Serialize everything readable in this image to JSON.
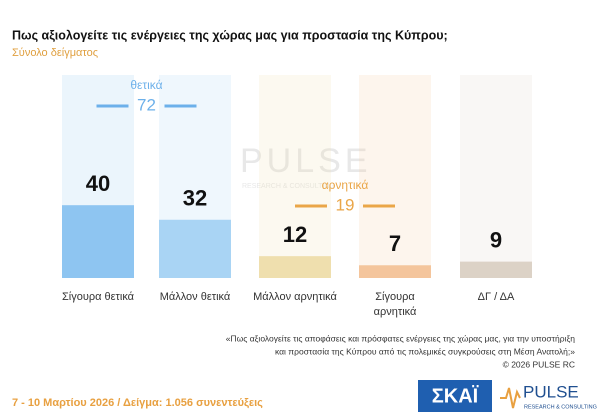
{
  "chart_data": {
    "type": "bar",
    "title": "Πως αξιολογείτε τις ενέργειες της χώρας μας για προστασία της Κύπρου;",
    "subtitle": "Σύνολο δείγματος",
    "categories": [
      "Σίγουρα θετικά",
      "Μάλλον θετικά",
      "Μάλλον αρνητικά",
      "Σίγουρα αρνητικά",
      "ΔΓ / ΔΑ"
    ],
    "values": [
      40,
      32,
      12,
      7,
      9
    ],
    "colors": [
      "#8ec5f1",
      "#a9d4f4",
      "#efdfae",
      "#f4c59c",
      "#dcd2c6"
    ],
    "groups": [
      {
        "label": "θετικά",
        "value": 72,
        "color": "#6cb0ea",
        "categories": [
          "Σίγουρα θετικά",
          "Μάλλον θετικά"
        ]
      },
      {
        "label": "αρνητικά",
        "value": 19,
        "color": "#eaa648",
        "categories": [
          "Μάλλον αρνητικά",
          "Σίγουρα αρνητικά"
        ]
      }
    ],
    "note_lines": [
      "«Πως αξιολογείτε τις αποφάσεις και πρόσφατες ενέργειες της χώρας μας, για την υποστήριξη",
      "και προστασία της Κύπρου από τις πολεμικές συγκρούσεις στη Μέση Ανατολή;»"
    ],
    "copyright": "© 2026 PULSE RC",
    "footer": "7 - 10 Μαρτίου 2026 / Δείγμα: 1.056 συνεντεύξεις",
    "logo_skai": "ΣΚΑΪ",
    "logo_pulse": "PULSE",
    "logo_pulse_sub": "RESEARCH & CONSULTING"
  }
}
